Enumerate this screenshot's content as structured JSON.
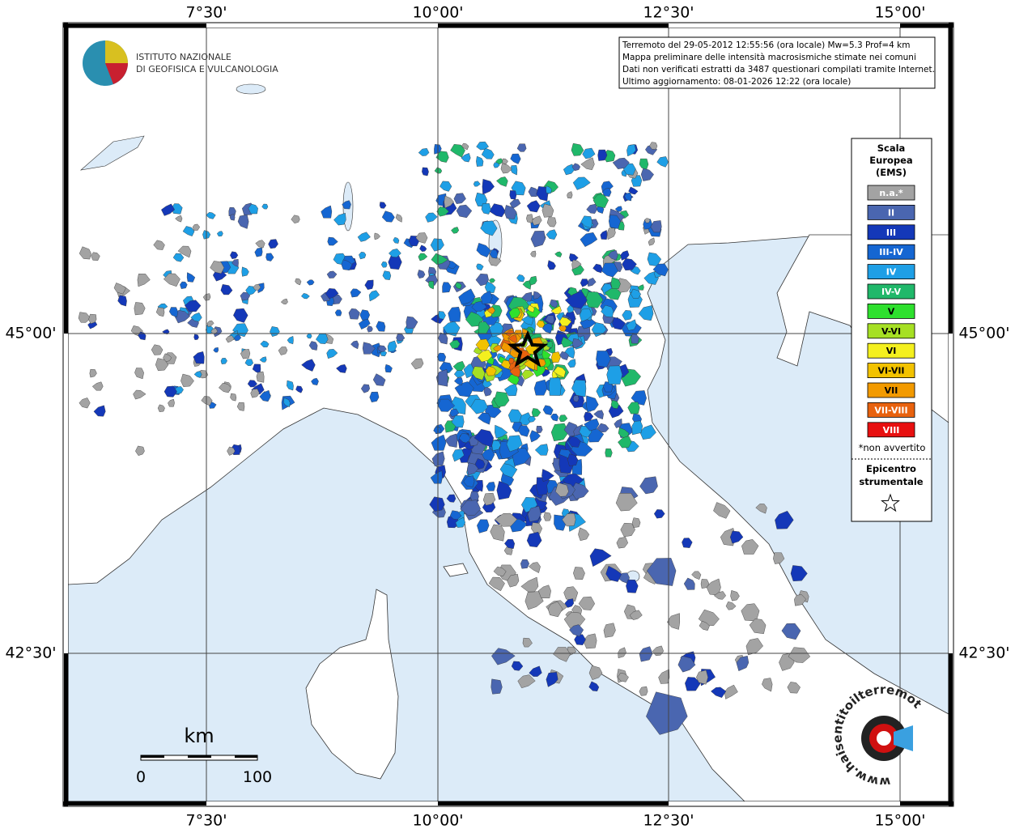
{
  "map": {
    "lon_labels": [
      "7°30'",
      "10°00'",
      "12°30'",
      "15°00'"
    ],
    "lat_labels": [
      "45°00'",
      "42°30'"
    ],
    "info": [
      "Terremoto del 29-05-2012 12:55:56 (ora locale) Mw=5.3 Prof=4 km",
      "Mappa preliminare delle intensità macrosismiche stimate nei comuni",
      "Dati non verificati estratti da 3487 questionari compilati tramite Internet.",
      "Ultimo aggiornamento: 08-01-2026 12:22 (ora locale)"
    ],
    "institute": [
      "ISTITUTO NAZIONALE",
      "DI GEOFISICA E VULCANOLOGIA"
    ],
    "legend": {
      "title": [
        "Scala",
        "Europea",
        "(EMS)"
      ],
      "items": [
        {
          "label": "n.a.*",
          "color": "#a3a3a3"
        },
        {
          "label": "II",
          "color": "#4a66b0"
        },
        {
          "label": "III",
          "color": "#1438b8"
        },
        {
          "label": "III-IV",
          "color": "#1566d2"
        },
        {
          "label": "IV",
          "color": "#1e9fe6"
        },
        {
          "label": "IV-V",
          "color": "#20b86a"
        },
        {
          "label": "V",
          "color": "#2ee02e"
        },
        {
          "label": "V-VI",
          "color": "#a6e024"
        },
        {
          "label": "VI",
          "color": "#f4f01e"
        },
        {
          "label": "VI-VII",
          "color": "#f2c200"
        },
        {
          "label": "VII",
          "color": "#f29a00"
        },
        {
          "label": "VII-VIII",
          "color": "#e8620e"
        },
        {
          "label": "VIII",
          "color": "#e81010"
        }
      ],
      "note": "*non avvertito",
      "epicenter": [
        "Epicentro",
        "strumentale"
      ]
    },
    "scale": {
      "unit": "km",
      "start": "0",
      "end": "100"
    },
    "site": "www.haisentitoilterremoto.it"
  }
}
